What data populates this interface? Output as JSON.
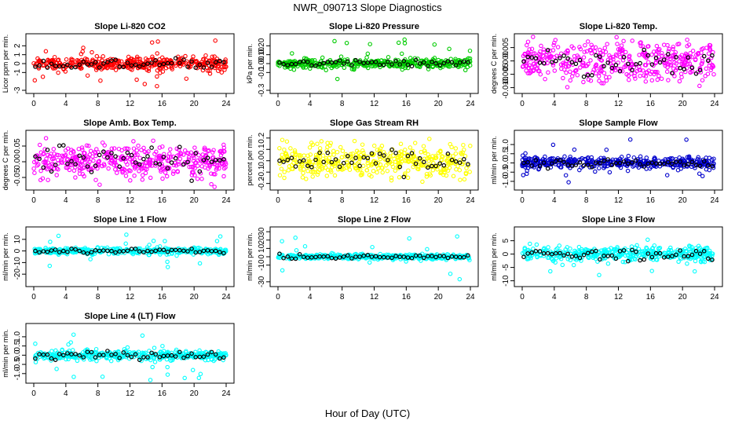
{
  "title": "NWR_090713  Slope Diagnostics",
  "xlabel": "Hour of Day (UTC)",
  "chart_data": [
    {
      "type": "scatter",
      "title": "Slope Li-820 CO2",
      "ylabel": "Licor ppm per min.",
      "xlim": [
        0,
        24
      ],
      "ylim": [
        -3,
        3
      ],
      "xticks": [
        "0",
        "4",
        "8",
        "12",
        "16",
        "20",
        "24"
      ],
      "yticks": [
        "-3",
        "-1",
        "0",
        "1",
        "2"
      ],
      "main_color": "#ff0000",
      "spread": 0.35,
      "outlier": 2.6,
      "seed": 11
    },
    {
      "type": "scatter",
      "title": "Slope Li-820 Pressure",
      "ylabel": "kPa per min.",
      "xlim": [
        0,
        24
      ],
      "ylim": [
        -0.3,
        0.3
      ],
      "xticks": [
        "0",
        "4",
        "8",
        "12",
        "16",
        "20",
        "24"
      ],
      "yticks": [
        "-0.3",
        "-0.1",
        "0.00",
        "0.10",
        "0.20"
      ],
      "main_color": "#00cc00",
      "spread": 0.025,
      "outlier": 0.28,
      "seed": 23
    },
    {
      "type": "scatter",
      "title": "Slope Li-820 Temp.",
      "ylabel": "degrees C per min.",
      "xlim": [
        0,
        24
      ],
      "ylim": [
        -0.011,
        0.009
      ],
      "xticks": [
        "0",
        "4",
        "8",
        "12",
        "16",
        "20",
        "24"
      ],
      "yticks": [
        "-0.010",
        "-0.005",
        "0.000",
        "0.005"
      ],
      "main_color": "#ff00ff",
      "spread": 0.0035,
      "outlier": 0.008,
      "seed": 37
    },
    {
      "type": "scatter",
      "title": "Slope Amb. Box Temp.",
      "ylabel": "degrees C per min.",
      "xlim": [
        0,
        24
      ],
      "ylim": [
        -0.08,
        0.09
      ],
      "xticks": [
        "0",
        "4",
        "8",
        "12",
        "16",
        "20",
        "24"
      ],
      "yticks": [
        "-0.05",
        "0.00",
        "0.05"
      ],
      "main_color": "#ff00ff",
      "spread": 0.025,
      "outlier": 0.075,
      "seed": 41
    },
    {
      "type": "scatter",
      "title": "Slope Gas Stream RH",
      "ylabel": "percent per min.",
      "xlim": [
        0,
        24
      ],
      "ylim": [
        -0.23,
        0.24
      ],
      "xticks": [
        "0",
        "4",
        "8",
        "12",
        "16",
        "20",
        "24"
      ],
      "yticks": [
        "-0.2",
        "-0.1",
        "0.0",
        "0.1",
        "0.2"
      ],
      "main_color": "#ffff00",
      "spread": 0.07,
      "outlier": 0.2,
      "seed": 53
    },
    {
      "type": "scatter",
      "title": "Slope Sample Flow",
      "ylabel": "ml/min per min.",
      "xlim": [
        0,
        24
      ],
      "ylim": [
        -1.3,
        1.6
      ],
      "xticks": [
        "0",
        "4",
        "8",
        "12",
        "16",
        "20",
        "24"
      ],
      "yticks": [
        "-1.0",
        "-0.5",
        "0.0",
        "0.5",
        "1.0"
      ],
      "main_color": "#0000cc",
      "spread": 0.15,
      "outlier": 1.3,
      "seed": 67
    },
    {
      "type": "scatter",
      "title": "Slope Line 1 Flow",
      "ylabel": "ml/min per min.",
      "xlim": [
        0,
        24
      ],
      "ylim": [
        -28,
        18
      ],
      "xticks": [
        "0",
        "4",
        "8",
        "12",
        "16",
        "20",
        "24"
      ],
      "yticks": [
        "-20",
        "-10",
        "0",
        "10"
      ],
      "main_color": "#00ffff",
      "spread": 1.3,
      "outlier": 16,
      "seed": 71
    },
    {
      "type": "scatter",
      "title": "Slope Line 2 Flow",
      "ylabel": "ml/min per min.",
      "xlim": [
        0,
        24
      ],
      "ylim": [
        -32,
        32
      ],
      "xticks": [
        "0",
        "4",
        "8",
        "12",
        "16",
        "20",
        "24"
      ],
      "yticks": [
        "-30",
        "-10",
        "0",
        "10",
        "20",
        "30"
      ],
      "main_color": "#00ffff",
      "spread": 1.5,
      "outlier": 28,
      "seed": 83
    },
    {
      "type": "scatter",
      "title": "Slope Line 3 Flow",
      "ylabel": "ml/min per min.",
      "xlim": [
        0,
        24
      ],
      "ylim": [
        -11,
        9
      ],
      "xticks": [
        "0",
        "4",
        "8",
        "12",
        "16",
        "20",
        "24"
      ],
      "yticks": [
        "-10",
        "-5",
        "0",
        "5"
      ],
      "main_color": "#00ffff",
      "spread": 1.4,
      "outlier": 8,
      "seed": 97
    },
    {
      "type": "scatter",
      "title": "Slope Line 4 (LT) Flow",
      "ylabel": "ml/min per min.",
      "xlim": [
        0,
        24
      ],
      "ylim": [
        -1.35,
        1.55
      ],
      "xticks": [
        "0",
        "4",
        "8",
        "12",
        "16",
        "20",
        "24"
      ],
      "yticks": [
        "-1.0",
        "-0.5",
        "0.0",
        "0.5",
        "1.0"
      ],
      "main_color": "#00ffff",
      "spread": 0.12,
      "outlier": 1.4,
      "seed": 101
    }
  ]
}
